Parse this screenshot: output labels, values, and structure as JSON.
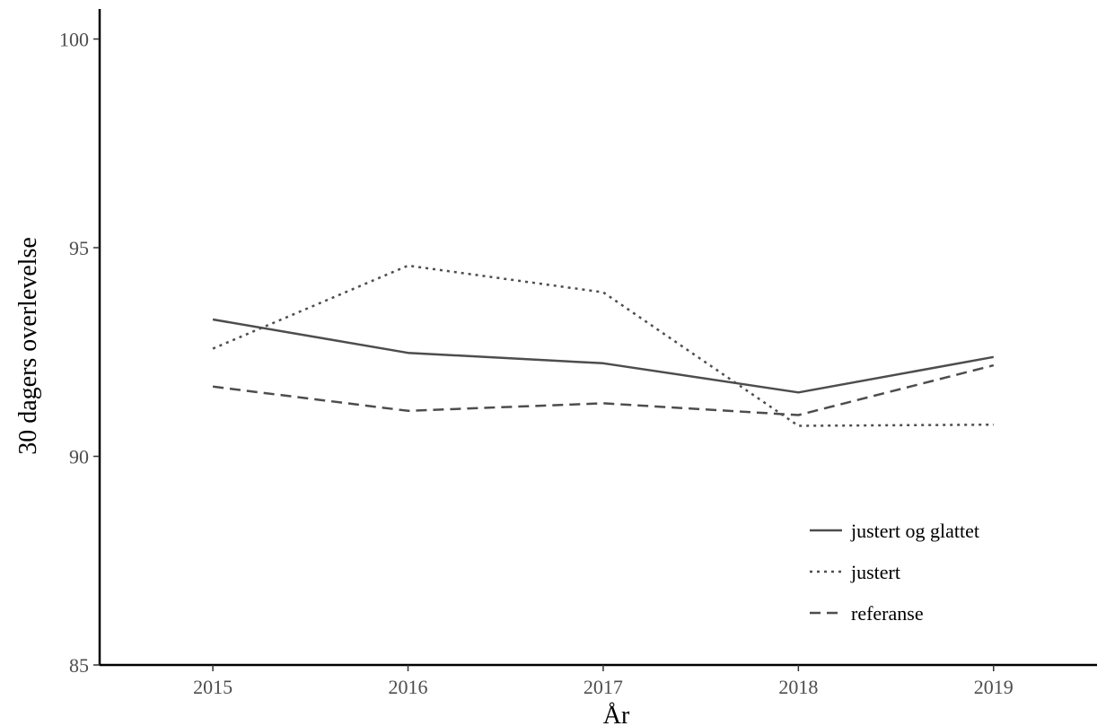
{
  "chart_data": {
    "type": "line",
    "xlabel": "År",
    "ylabel": "30 dagers overlevelse",
    "x": [
      2015,
      2016,
      2017,
      2018,
      2019
    ],
    "xlim": [
      2014.42,
      2019.53
    ],
    "ylim": [
      85,
      100.72
    ],
    "xticks": [
      "2015",
      "2016",
      "2017",
      "2018",
      "2019"
    ],
    "yticks": [
      "85",
      "90",
      "95",
      "100"
    ],
    "grid": false,
    "legend_position": "bottom-right",
    "line_color": "#4d4d4d",
    "series": [
      {
        "name": "justert og glattet",
        "linestyle": "solid",
        "values": [
          93.28,
          92.48,
          92.23,
          91.53,
          92.38
        ]
      },
      {
        "name": "justert",
        "linestyle": "dotted",
        "values": [
          92.58,
          94.57,
          93.93,
          90.73,
          90.76
        ]
      },
      {
        "name": "referanse",
        "linestyle": "dashed",
        "values": [
          91.67,
          91.09,
          91.27,
          90.99,
          92.18
        ]
      }
    ]
  }
}
